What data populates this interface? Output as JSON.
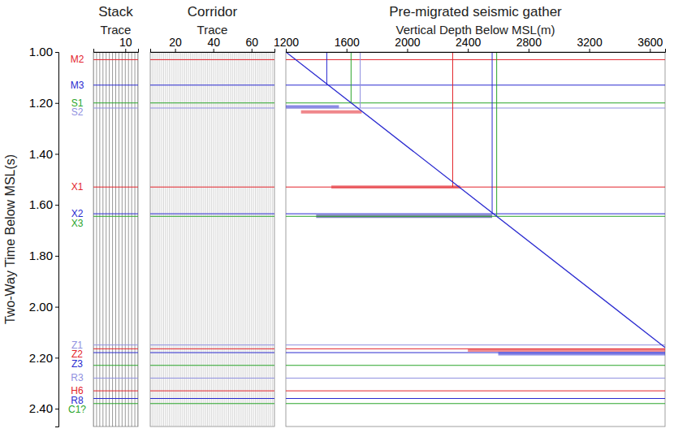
{
  "chart_data": {
    "type": "seismic_panels",
    "y_axis": {
      "title": "Two-Way Time Below MSL(s)",
      "ylim": [
        1.0,
        2.47
      ],
      "yticks": [
        {
          "value": 1.0,
          "label": "1.00"
        },
        {
          "value": 1.2,
          "label": "1.20"
        },
        {
          "value": 1.4,
          "label": "1.40"
        },
        {
          "value": 1.6,
          "label": "1.60"
        },
        {
          "value": 1.8,
          "label": "1.80"
        },
        {
          "value": 2.0,
          "label": "2.00"
        },
        {
          "value": 2.2,
          "label": "2.20"
        },
        {
          "value": 2.4,
          "label": "2.40"
        }
      ]
    },
    "panels": [
      {
        "title": "Stack",
        "x_title": "Trace",
        "xlim": [
          0,
          14
        ],
        "xticks": [
          10
        ]
      },
      {
        "title": "Corridor",
        "x_title": "Trace",
        "xlim": [
          7,
          72
        ],
        "xticks": [
          20,
          40,
          60
        ]
      },
      {
        "title": "Pre-migrated seismic gather",
        "x_title": "Vertical Depth Below MSL(m)",
        "xlim": [
          1200,
          3700
        ],
        "xticks": [
          1200,
          1600,
          2000,
          2400,
          2800,
          3200,
          3600
        ],
        "diagonal": {
          "depth": [
            1200,
            3700
          ],
          "time": [
            1.0,
            2.16
          ],
          "color": "#2a2ad0"
        },
        "events": [
          {
            "time": 1.215,
            "depth": [
              1200,
              1550
            ],
            "color": "#2a2ad0"
          },
          {
            "time": 1.235,
            "depth": [
              1300,
              1700
            ],
            "color": "#e3242b"
          },
          {
            "time": 1.53,
            "depth": [
              1500,
              2350
            ],
            "color": "#e3242b"
          },
          {
            "time": 1.645,
            "depth": [
              1400,
              2560
            ],
            "color": "#1a1a80"
          },
          {
            "time": 2.17,
            "depth": [
              2400,
              3700
            ],
            "color": "#e3242b"
          },
          {
            "time": 2.185,
            "depth": [
              2600,
              3700
            ],
            "color": "#2a2ad0"
          }
        ]
      }
    ],
    "horizons": [
      {
        "label": "M2",
        "time": 1.03,
        "color": "#e3242b"
      },
      {
        "label": "M3",
        "time": 1.13,
        "color": "#2a2ad0",
        "depth": 1470
      },
      {
        "label": "S1",
        "time": 1.2,
        "color": "#2aa52a",
        "depth": 1630
      },
      {
        "label": "S2",
        "time": 1.22,
        "color": "#9090e0",
        "depth": 1690
      },
      {
        "label": "X1",
        "time": 1.53,
        "color": "#e3242b",
        "depth": 2300
      },
      {
        "label": "X2",
        "time": 1.635,
        "color": "#2a2ad0",
        "depth": 2560
      },
      {
        "label": "X3",
        "time": 1.645,
        "color": "#2aa52a",
        "depth": 2590
      },
      {
        "label": "Z1",
        "time": 2.15,
        "color": "#9090e0"
      },
      {
        "label": "Z2",
        "time": 2.165,
        "color": "#e3242b"
      },
      {
        "label": "Z3",
        "time": 2.18,
        "color": "#2a2ad0"
      },
      {
        "label": null,
        "time": 2.23,
        "color": "#2aa52a"
      },
      {
        "label": "R3",
        "time": 2.28,
        "color": "#9090e0"
      },
      {
        "label": "H6",
        "time": 2.33,
        "color": "#e3242b"
      },
      {
        "label": "R8",
        "time": 2.36,
        "color": "#2a2ad0"
      },
      {
        "label": "C1?",
        "time": 2.38,
        "color": "#2aa52a"
      }
    ]
  }
}
